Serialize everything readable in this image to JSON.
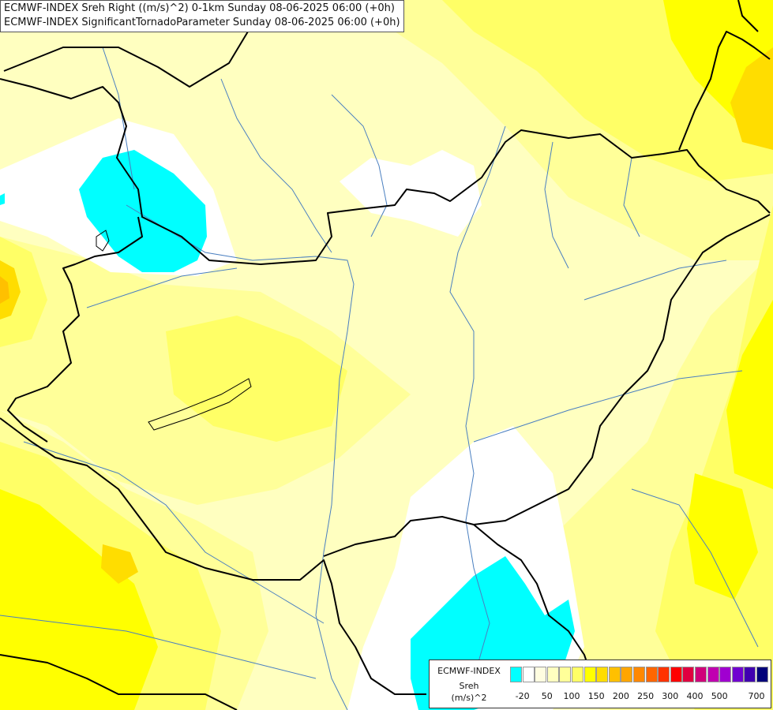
{
  "title_lines": [
    "ECMWF-INDEX Sreh Right ((m/s)^2) 0-1km Sunday 08-06-2025 06:00 (+0h)",
    "ECMWF-INDEX SignificantTornadoParameter Sunday 08-06-2025 06:00 (+0h)"
  ],
  "legend": {
    "title_lines": [
      "ECMWF-INDEX",
      "Sreh",
      "(m/s)^2"
    ],
    "colors": [
      "#00ffff",
      "#ffffff",
      "#fffde0",
      "#ffffc0",
      "#ffff99",
      "#ffff66",
      "#ffff00",
      "#ffdd00",
      "#ffc000",
      "#ffa500",
      "#ff8800",
      "#ff6600",
      "#ff3300",
      "#ff0000",
      "#e00040",
      "#d0007a",
      "#c000b0",
      "#a000d0",
      "#7000d0",
      "#4000b0",
      "#00007a"
    ],
    "ticks": [
      "-20",
      "50",
      "100",
      "150",
      "200",
      "250",
      "300",
      "400",
      "500",
      "700"
    ]
  },
  "colors": {
    "cyan": "#00ffff",
    "white": "#ffffff",
    "pale_yellow": "#ffffc0",
    "light_yellow": "#ffff99",
    "yellow": "#ffff66",
    "strong_yellow": "#ffff00",
    "gold": "#ffdd00",
    "orange": "#ffc000",
    "border": "#000000",
    "river": "#4a7fc0"
  }
}
